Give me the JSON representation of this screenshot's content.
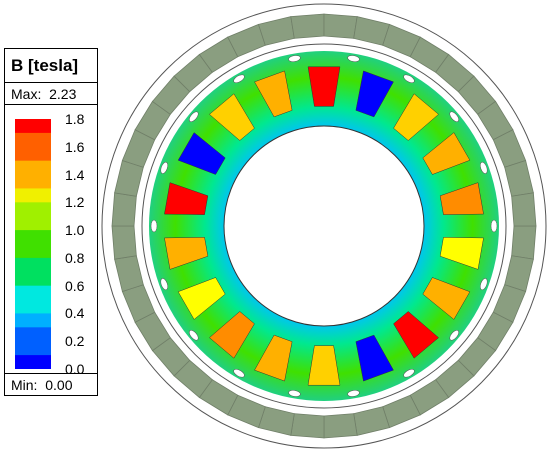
{
  "legend": {
    "title": "B [tesla]",
    "max_label": "Max:",
    "max_value": "2.23",
    "min_label": "Min:",
    "min_value": "0.00",
    "ticks": [
      "1.8",
      "1.6",
      "1.4",
      "1.2",
      "1.0",
      "0.8",
      "0.6",
      "0.4",
      "0.2",
      "0.0"
    ],
    "scale_min": 0.0,
    "scale_max": 1.8,
    "colormap": [
      "#0000ff",
      "#0060ff",
      "#00b0ff",
      "#00e8e0",
      "#00e060",
      "#40e000",
      "#a0f000",
      "#f0f000",
      "#ffb000",
      "#ff6000",
      "#ff0000"
    ]
  },
  "colors": {
    "outer_ring": "#8a9e80",
    "outer_ring_edge": "#707f68",
    "field_bg": "#00d070",
    "rotor_hole": "#ffffff"
  }
}
